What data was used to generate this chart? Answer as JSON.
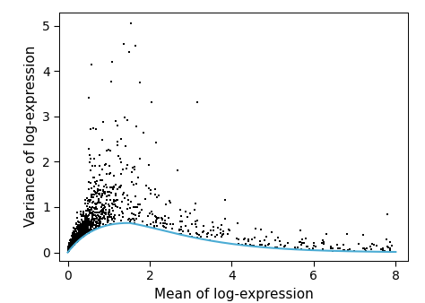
{
  "xlabel": "Mean of log-expression",
  "ylabel": "Variance of log-expression",
  "xlim": [
    -0.2,
    8.3
  ],
  "ylim": [
    -0.18,
    5.3
  ],
  "xticks": [
    0,
    2,
    4,
    6,
    8
  ],
  "yticks": [
    0,
    1,
    2,
    3,
    4,
    5
  ],
  "scatter_color": "#000000",
  "scatter_size": 2.5,
  "line_color": "#4BACD4",
  "line_width": 1.5,
  "background_color": "#ffffff",
  "random_seed": 7,
  "tick_fontsize": 10,
  "label_fontsize": 11,
  "curve_peak_x": 1.5,
  "curve_peak_y": 0.65,
  "curve_decay": 0.22
}
